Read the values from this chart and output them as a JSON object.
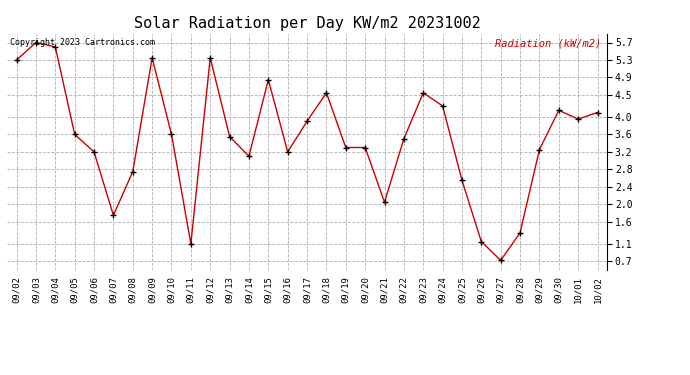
{
  "title": "Solar Radiation per Day KW/m2 20231002",
  "copyright_text": "Copyright 2023 Cartronics.com",
  "legend_label": "Radiation (kW/m2)",
  "dates": [
    "09/02",
    "09/03",
    "09/04",
    "09/05",
    "09/06",
    "09/07",
    "09/08",
    "09/09",
    "09/10",
    "09/11",
    "09/12",
    "09/13",
    "09/14",
    "09/15",
    "09/16",
    "09/17",
    "09/18",
    "09/19",
    "09/20",
    "09/21",
    "09/22",
    "09/23",
    "09/24",
    "09/25",
    "09/26",
    "09/27",
    "09/28",
    "09/29",
    "09/30",
    "10/01",
    "10/02"
  ],
  "values": [
    5.3,
    5.7,
    5.6,
    3.6,
    3.2,
    1.75,
    2.75,
    5.35,
    3.6,
    1.1,
    5.35,
    3.55,
    3.1,
    4.85,
    3.2,
    3.9,
    4.55,
    3.3,
    3.3,
    2.05,
    3.5,
    4.55,
    4.25,
    2.55,
    1.15,
    0.72,
    1.35,
    3.25,
    4.15,
    3.95,
    4.1
  ],
  "line_color": "#cc0000",
  "marker_color": "#000000",
  "grid_color": "#b0b0b0",
  "background_color": "#ffffff",
  "title_fontsize": 11,
  "yticks": [
    0.7,
    1.1,
    1.6,
    2.0,
    2.4,
    2.8,
    3.2,
    3.6,
    4.0,
    4.5,
    4.9,
    5.3,
    5.7
  ],
  "ylim": [
    0.5,
    5.9
  ],
  "copyright_color": "#000000",
  "legend_color": "#cc0000"
}
